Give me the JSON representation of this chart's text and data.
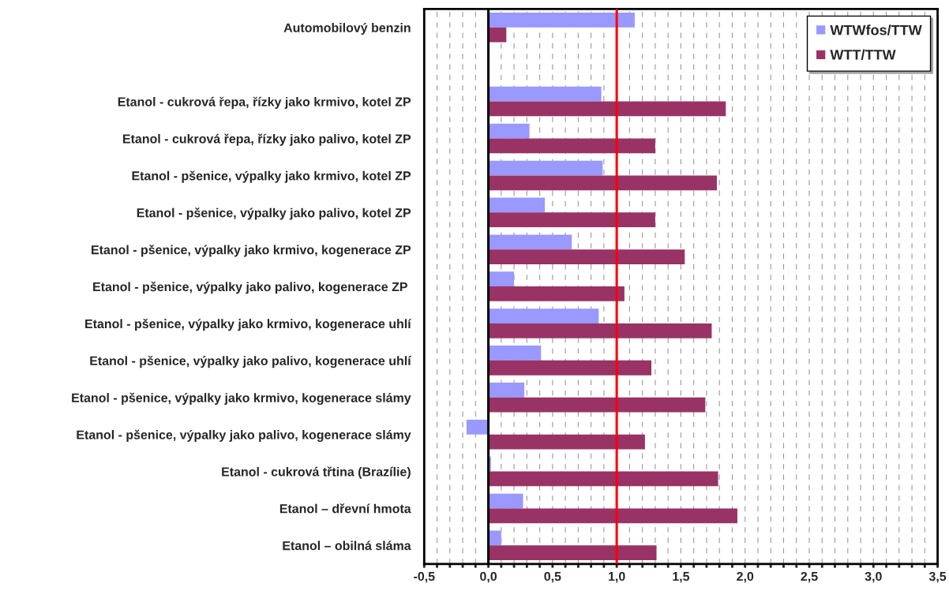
{
  "chart_data": {
    "type": "bar",
    "orientation": "horizontal",
    "categories": [
      "Automobilový benzin",
      null,
      "Etanol - cukrová řepa, řízky jako krmivo, kotel ZP",
      "Etanol - cukrová řepa, řízky jako palivo, kotel ZP",
      "Etanol - pšenice, výpalky jako krmivo, kotel ZP",
      "Etanol - pšenice, výpalky jako palivo, kotel ZP",
      "Etanol - pšenice, výpalky jako krmivo, kogenerace ZP",
      "Etanol - pšenice, výpalky jako palivo, kogenerace ZP ",
      "Etanol - pšenice, výpalky jako krmivo, kogenerace uhlí",
      "Etanol - pšenice, výpalky jako palivo, kogenerace uhlí",
      "Etanol - pšenice, výpalky jako krmivo, kogenerace slámy",
      "Etanol - pšenice, výpalky jako palivo, kogenerace slámy",
      "Etanol - cukrová třtina (Brazílie)",
      "Etanol – dřevní hmota",
      "Etanol – obilná sláma"
    ],
    "series": [
      {
        "name": "WTWfos/TTW",
        "color": "#9999ff",
        "values": [
          1.14,
          null,
          0.88,
          0.32,
          0.89,
          0.44,
          0.65,
          0.2,
          0.86,
          0.41,
          0.28,
          -0.17,
          0.02,
          0.27,
          0.1
        ]
      },
      {
        "name": "WTT/TTW",
        "color": "#993366",
        "values": [
          0.14,
          null,
          1.85,
          1.3,
          1.78,
          1.3,
          1.53,
          1.06,
          1.74,
          1.27,
          1.69,
          1.22,
          1.79,
          1.94,
          1.31
        ]
      }
    ],
    "xlim": [
      -0.5,
      3.5
    ],
    "xticks": [
      {
        "value": -0.5,
        "label": "-0,5"
      },
      {
        "value": -0.4,
        "label": null
      },
      {
        "value": -0.3,
        "label": null
      },
      {
        "value": -0.2,
        "label": null
      },
      {
        "value": -0.1,
        "label": null
      },
      {
        "value": 0,
        "label": "0,0"
      },
      {
        "value": 0.1,
        "label": null
      },
      {
        "value": 0.2,
        "label": null
      },
      {
        "value": 0.3,
        "label": null
      },
      {
        "value": 0.4,
        "label": null
      },
      {
        "value": 0.5,
        "label": "0,5"
      },
      {
        "value": 0.6,
        "label": null
      },
      {
        "value": 0.7,
        "label": null
      },
      {
        "value": 0.8,
        "label": null
      },
      {
        "value": 0.9,
        "label": null
      },
      {
        "value": 1.0,
        "label": "1,0"
      },
      {
        "value": 1.1,
        "label": null
      },
      {
        "value": 1.2,
        "label": null
      },
      {
        "value": 1.3,
        "label": null
      },
      {
        "value": 1.4,
        "label": null
      },
      {
        "value": 1.5,
        "label": "1,5"
      },
      {
        "value": 1.6,
        "label": null
      },
      {
        "value": 1.7,
        "label": null
      },
      {
        "value": 1.8,
        "label": null
      },
      {
        "value": 1.9,
        "label": null
      },
      {
        "value": 2.0,
        "label": "2,0"
      },
      {
        "value": 2.1,
        "label": null
      },
      {
        "value": 2.2,
        "label": null
      },
      {
        "value": 2.3,
        "label": null
      },
      {
        "value": 2.4,
        "label": null
      },
      {
        "value": 2.5,
        "label": "2,5"
      },
      {
        "value": 2.6,
        "label": null
      },
      {
        "value": 2.7,
        "label": null
      },
      {
        "value": 2.8,
        "label": null
      },
      {
        "value": 2.9,
        "label": null
      },
      {
        "value": 3.0,
        "label": "3,0"
      },
      {
        "value": 3.1,
        "label": null
      },
      {
        "value": 3.2,
        "label": null
      },
      {
        "value": 3.3,
        "label": null
      },
      {
        "value": 3.4,
        "label": null
      },
      {
        "value": 3.5,
        "label": "3,5"
      }
    ],
    "grid": "x",
    "legend": "top right",
    "ref_lines": [
      {
        "axis": "x",
        "value": 0,
        "color": "#000000"
      },
      {
        "axis": "x",
        "value": 1.0,
        "color": "#ff0000"
      }
    ]
  }
}
